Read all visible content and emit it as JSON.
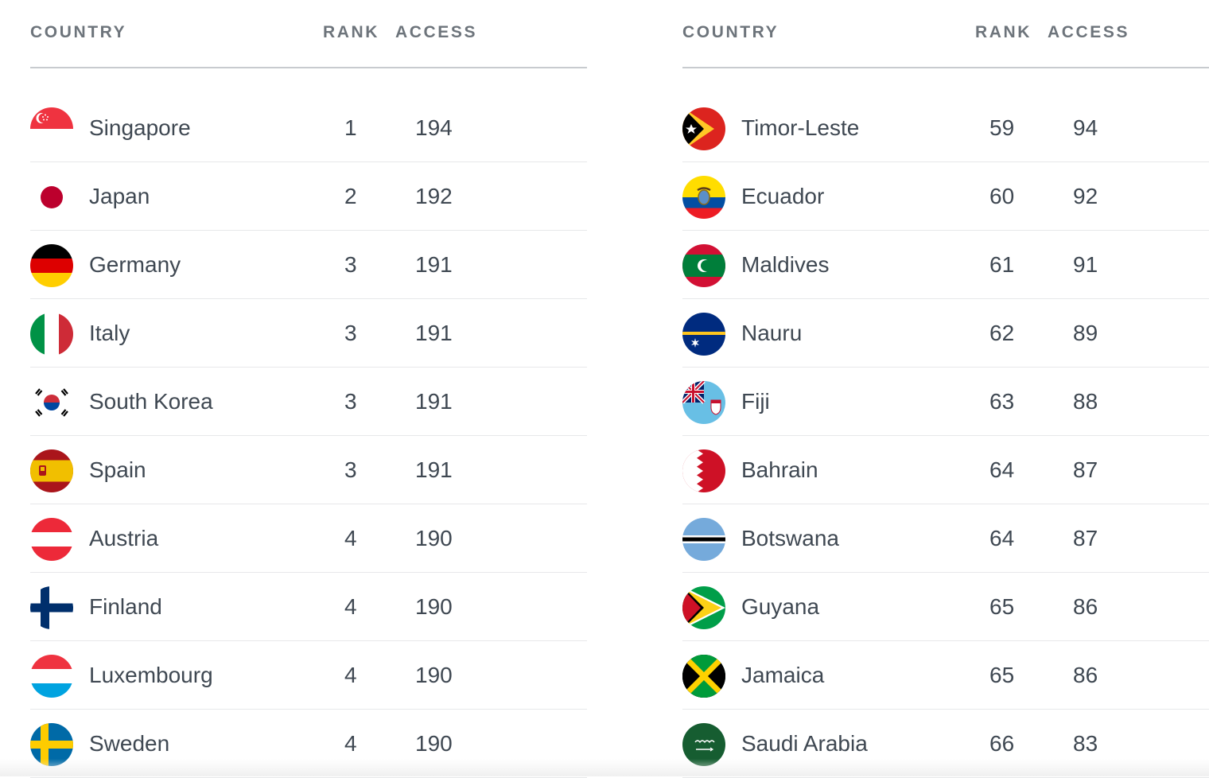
{
  "headers": {
    "country": "COUNTRY",
    "rank": "RANK",
    "access": "ACCESS"
  },
  "left_table": {
    "rows": [
      {
        "country": "Singapore",
        "rank": "1",
        "access": "194",
        "flag_icon": "singapore-flag-icon"
      },
      {
        "country": "Japan",
        "rank": "2",
        "access": "192",
        "flag_icon": "japan-flag-icon"
      },
      {
        "country": "Germany",
        "rank": "3",
        "access": "191",
        "flag_icon": "germany-flag-icon"
      },
      {
        "country": "Italy",
        "rank": "3",
        "access": "191",
        "flag_icon": "italy-flag-icon"
      },
      {
        "country": "South Korea",
        "rank": "3",
        "access": "191",
        "flag_icon": "south-korea-flag-icon"
      },
      {
        "country": "Spain",
        "rank": "3",
        "access": "191",
        "flag_icon": "spain-flag-icon"
      },
      {
        "country": "Austria",
        "rank": "4",
        "access": "190",
        "flag_icon": "austria-flag-icon"
      },
      {
        "country": "Finland",
        "rank": "4",
        "access": "190",
        "flag_icon": "finland-flag-icon"
      },
      {
        "country": "Luxembourg",
        "rank": "4",
        "access": "190",
        "flag_icon": "luxembourg-flag-icon"
      },
      {
        "country": "Sweden",
        "rank": "4",
        "access": "190",
        "flag_icon": "sweden-flag-icon"
      }
    ]
  },
  "right_table": {
    "rows": [
      {
        "country": "Timor-Leste",
        "rank": "59",
        "access": "94",
        "flag_icon": "timor-leste-flag-icon"
      },
      {
        "country": "Ecuador",
        "rank": "60",
        "access": "92",
        "flag_icon": "ecuador-flag-icon"
      },
      {
        "country": "Maldives",
        "rank": "61",
        "access": "91",
        "flag_icon": "maldives-flag-icon"
      },
      {
        "country": "Nauru",
        "rank": "62",
        "access": "89",
        "flag_icon": "nauru-flag-icon"
      },
      {
        "country": "Fiji",
        "rank": "63",
        "access": "88",
        "flag_icon": "fiji-flag-icon"
      },
      {
        "country": "Bahrain",
        "rank": "64",
        "access": "87",
        "flag_icon": "bahrain-flag-icon"
      },
      {
        "country": "Botswana",
        "rank": "64",
        "access": "87",
        "flag_icon": "botswana-flag-icon"
      },
      {
        "country": "Guyana",
        "rank": "65",
        "access": "86",
        "flag_icon": "guyana-flag-icon"
      },
      {
        "country": "Jamaica",
        "rank": "65",
        "access": "86",
        "flag_icon": "jamaica-flag-icon"
      },
      {
        "country": "Saudi Arabia",
        "rank": "66",
        "access": "83",
        "flag_icon": "saudi-arabia-flag-icon"
      }
    ]
  },
  "colors": {
    "header_text": "#6d747b",
    "body_text": "#3f4852",
    "header_rule": "#c8cbcf",
    "row_rule": "#e7e8ea"
  }
}
